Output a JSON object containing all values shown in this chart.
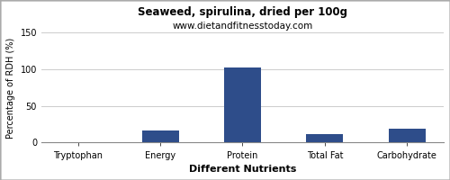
{
  "title": "Seaweed, spirulina, dried per 100g",
  "subtitle": "www.dietandfitnesstoday.com",
  "xlabel": "Different Nutrients",
  "ylabel": "Percentage of RDH (%)",
  "categories": [
    "Tryptophan",
    "Energy",
    "Protein",
    "Total Fat",
    "Carbohydrate"
  ],
  "values": [
    0.5,
    16,
    103,
    12,
    19
  ],
  "bar_color": "#2e4d8a",
  "ylim": [
    0,
    150
  ],
  "yticks": [
    0,
    50,
    100,
    150
  ],
  "background_color": "#ffffff",
  "grid_color": "#cccccc",
  "title_fontsize": 8.5,
  "subtitle_fontsize": 7.5,
  "xlabel_fontsize": 8,
  "ylabel_fontsize": 7,
  "tick_fontsize": 7,
  "bar_width": 0.45
}
